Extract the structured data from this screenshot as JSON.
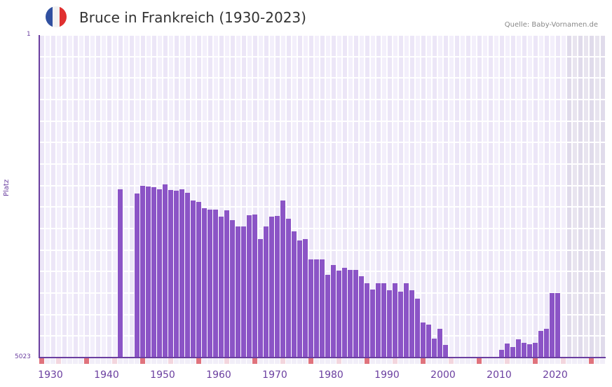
{
  "header": {
    "title": "Bruce in Frankreich (1930-2023)",
    "source": "Quelle: Baby-Vornamen.de",
    "flag_colors": [
      "#3050a0",
      "#f2f2f2",
      "#e03030"
    ]
  },
  "colors": {
    "bar": "#8b54c6",
    "axis": "#6b3fa0",
    "grid_light": "#f3effb",
    "grid_dark": "#ece6f7",
    "future_light": "#e8e4ef",
    "future_dark": "#e0dbeb",
    "marker_decade": "#e0737d",
    "marker_half": "#f3d6de",
    "marker_plain": "#f1eef8"
  },
  "chart_data": {
    "type": "bar",
    "title": "Bruce in Frankreich (1930-2023)",
    "xlabel": "",
    "ylabel": "Platz",
    "y_inverted": true,
    "ylim": [
      5023,
      1
    ],
    "y_ticks": [
      "1",
      "5023"
    ],
    "x_range": [
      1930,
      2030
    ],
    "x_ticks": [
      "1930",
      "1940",
      "1950",
      "1960",
      "1970",
      "1980",
      "1990",
      "2000",
      "2010",
      "2020"
    ],
    "grid": true,
    "legend": null,
    "data_end_year": 2023,
    "x": [
      1944,
      1947,
      1948,
      1949,
      1950,
      1951,
      1952,
      1953,
      1954,
      1955,
      1956,
      1957,
      1958,
      1959,
      1960,
      1961,
      1962,
      1963,
      1964,
      1965,
      1966,
      1967,
      1968,
      1969,
      1970,
      1971,
      1972,
      1973,
      1974,
      1975,
      1976,
      1977,
      1978,
      1979,
      1980,
      1981,
      1982,
      1983,
      1984,
      1985,
      1986,
      1987,
      1988,
      1989,
      1990,
      1991,
      1992,
      1993,
      1994,
      1995,
      1996,
      1997,
      1998,
      1999,
      2000,
      2001,
      2002,
      2003,
      2004,
      2005,
      2006,
      2007,
      2008,
      2009,
      2010,
      2011,
      2012,
      2013,
      2014,
      2015,
      2016,
      2017,
      2018,
      2019,
      2020,
      2021,
      2022
    ],
    "values": [
      2405,
      2470,
      2350,
      2355,
      2375,
      2400,
      2330,
      2410,
      2420,
      2405,
      2460,
      2580,
      2600,
      2700,
      2720,
      2720,
      2830,
      2730,
      2880,
      2980,
      2980,
      2810,
      2800,
      3180,
      2980,
      2830,
      2820,
      2580,
      2860,
      3060,
      3200,
      3180,
      3490,
      3490,
      3500,
      3740,
      3580,
      3670,
      3630,
      3660,
      3660,
      3760,
      3870,
      3960,
      3870,
      3870,
      3970,
      3870,
      4000,
      3870,
      3970,
      4110,
      4480,
      4510,
      4730,
      4580,
      4830,
      5080,
      5060,
      5020,
      5150,
      5200,
      5160,
      5110,
      5100,
      5260,
      4900,
      4800,
      4860,
      4740,
      4790,
      4820,
      4790,
      4610,
      4580,
      4020,
      4020
    ]
  }
}
